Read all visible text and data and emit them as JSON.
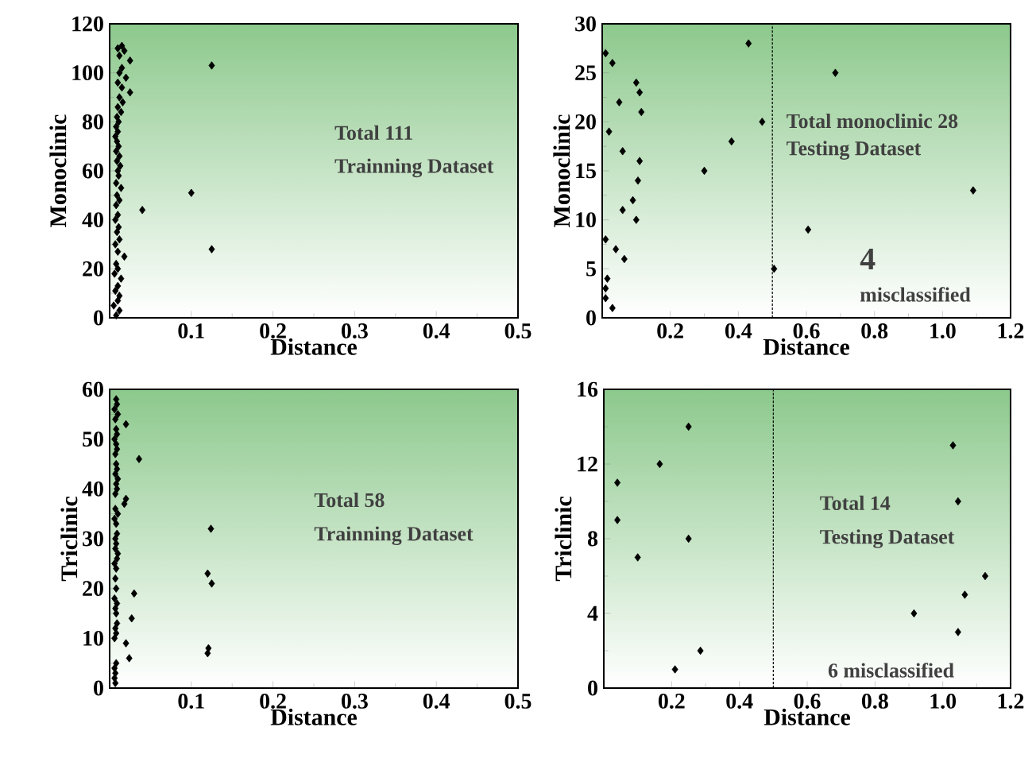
{
  "chart_data": [
    {
      "type": "scatter",
      "xlabel": "Distance",
      "ylabel": "Monoclinic",
      "marker": "diamond",
      "color": "#000000",
      "annotations": [
        "Total 111",
        "Trainning Dataset"
      ],
      "xlim": [
        0,
        0.5
      ],
      "ylim": [
        0,
        120
      ],
      "xticks": [
        0.1,
        0.2,
        0.3,
        0.4,
        0.5
      ],
      "yticks": [
        0,
        20,
        40,
        60,
        80,
        100,
        120
      ],
      "x": [
        0.008,
        0.012,
        0.005,
        0.01,
        0.012,
        0.007,
        0.01,
        0.014,
        0.006,
        0.01,
        0.008,
        0.018,
        0.01,
        0.125,
        0.007,
        0.012,
        0.009,
        0.011,
        0.007,
        0.01,
        0.04,
        0.008,
        0.012,
        0.009,
        0.1,
        0.014,
        0.008,
        0.011,
        0.01,
        0.013,
        0.009,
        0.012,
        0.008,
        0.011,
        0.009,
        0.007,
        0.01,
        0.008,
        0.011,
        0.009,
        0.014,
        0.01,
        0.016,
        0.012,
        0.025,
        0.015,
        0.01,
        0.02,
        0.012,
        0.125,
        0.015,
        0.025,
        0.012,
        0.018,
        0.015,
        0.01
      ],
      "values": [
        1,
        3,
        5,
        7,
        9,
        11,
        13,
        16,
        18,
        20,
        22,
        25,
        27,
        28,
        30,
        32,
        35,
        37,
        40,
        42,
        44,
        46,
        48,
        50,
        51,
        53,
        55,
        58,
        60,
        62,
        64,
        66,
        68,
        70,
        72,
        74,
        76,
        78,
        80,
        82,
        84,
        86,
        88,
        90,
        92,
        94,
        96,
        98,
        100,
        103,
        102,
        105,
        107,
        109,
        111,
        110
      ]
    },
    {
      "type": "scatter",
      "xlabel": "Distance",
      "ylabel": "Monoclinic",
      "marker": "diamond",
      "color": "#000000",
      "annotations": [
        "Total monoclinic 28",
        "Testing Dataset",
        "4",
        "misclassified"
      ],
      "ref_lines": [
        {
          "axis": "x",
          "value": 0.5,
          "line_style": "dashed"
        }
      ],
      "xlim": [
        0,
        1.2
      ],
      "ylim": [
        0,
        30
      ],
      "xticks": [
        0.2,
        0.4,
        0.6,
        0.8,
        {
          "value": 1,
          "label": "1.0"
        },
        1.2
      ],
      "yticks": [
        0,
        5,
        10,
        15,
        20,
        25,
        30
      ],
      "x": [
        0.01,
        0.03,
        0.05,
        0.1,
        0.11,
        0.115,
        0.02,
        0.06,
        0.11,
        0.105,
        0.3,
        0.38,
        0.43,
        0.47,
        0.09,
        0.06,
        0.1,
        0.01,
        0.04,
        0.065,
        0.015,
        0.01,
        0.01,
        0.03,
        0.505,
        0.605,
        0.685,
        1.09
      ],
      "values": [
        27,
        26,
        22,
        24,
        23,
        21,
        19,
        17,
        16,
        14,
        15,
        18,
        28,
        20,
        12,
        11,
        10,
        8,
        7,
        6,
        4,
        3,
        2,
        1,
        5,
        9,
        25,
        13
      ]
    },
    {
      "type": "scatter",
      "xlabel": "Distance",
      "ylabel": "Triclinic",
      "marker": "diamond",
      "color": "#000000",
      "annotations": [
        "Total 58",
        "Trainning Dataset"
      ],
      "xlim": [
        0,
        0.5
      ],
      "ylim": [
        0,
        60
      ],
      "xticks": [
        0.1,
        0.2,
        0.3,
        0.4,
        0.5
      ],
      "yticks": [
        0,
        10,
        20,
        30,
        40,
        50,
        60
      ],
      "x": [
        0.007,
        0.006,
        0.007,
        0.006,
        0.008,
        0.024,
        0.12,
        0.121,
        0.02,
        0.006,
        0.008,
        0.007,
        0.009,
        0.027,
        0.008,
        0.007,
        0.009,
        0.006,
        0.03,
        0.008,
        0.125,
        0.007,
        0.12,
        0.008,
        0.006,
        0.009,
        0.01,
        0.007,
        0.008,
        0.124,
        0.007,
        0.009,
        0.008,
        0.006,
        0.01,
        0.018,
        0.02,
        0.007,
        0.009,
        0.008,
        0.01,
        0.007,
        0.009,
        0.008,
        0.036,
        0.007,
        0.009,
        0.008,
        0.006,
        0.009,
        0.02,
        0.008,
        0.007,
        0.01,
        0.006,
        0.009,
        0.008,
        0.007
      ],
      "values": [
        1,
        2,
        3,
        4,
        5,
        6,
        7,
        8,
        9,
        10,
        11,
        12,
        13,
        14,
        15,
        16,
        17,
        18,
        19,
        20,
        21,
        22,
        23,
        24,
        25,
        26,
        27,
        28,
        29,
        32,
        30,
        31,
        33,
        34,
        35,
        37,
        38,
        39,
        40,
        41,
        42,
        43,
        44,
        45,
        46,
        47,
        48,
        49,
        50,
        51,
        53,
        52,
        54,
        55,
        56,
        57,
        58,
        36
      ]
    },
    {
      "type": "scatter",
      "xlabel": "Distance",
      "ylabel": "Triclinic",
      "marker": "diamond",
      "color": "#000000",
      "annotations": [
        "Total 14",
        "Testing Dataset",
        "6 misclassified"
      ],
      "ref_lines": [
        {
          "axis": "x",
          "value": 0.5,
          "line_style": "dashed"
        }
      ],
      "xlim": [
        0,
        1.2
      ],
      "ylim": [
        0,
        16
      ],
      "xticks": [
        0.2,
        0.4,
        0.6,
        0.8,
        {
          "value": 1,
          "label": "1.0"
        },
        1.2
      ],
      "yticks": [
        0,
        4,
        8,
        12,
        16
      ],
      "x": [
        0.04,
        0.04,
        0.1,
        0.165,
        0.25,
        0.25,
        0.21,
        0.285,
        0.915,
        1.03,
        1.045,
        1.065,
        1.045,
        1.125
      ],
      "values": [
        11,
        9,
        7,
        12,
        14,
        8,
        1,
        2,
        4,
        13,
        10,
        5,
        3,
        6
      ]
    }
  ]
}
